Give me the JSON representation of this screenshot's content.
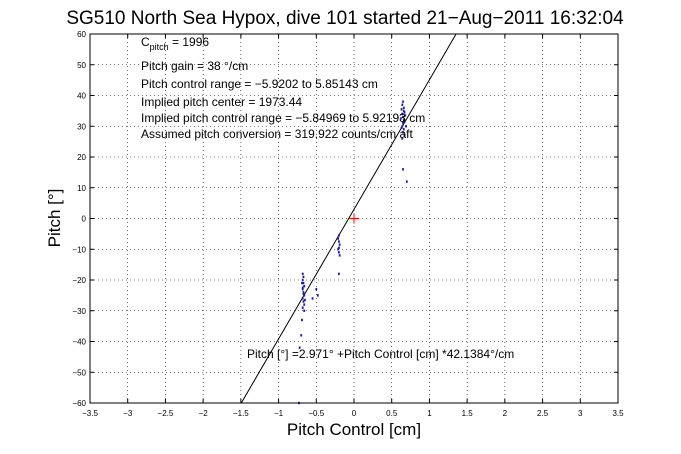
{
  "chart_data": {
    "type": "scatter",
    "title": "SG510 North Sea Hypox, dive 101 started 21−Aug−2011 16:32:04",
    "xlabel": "Pitch Control [cm]",
    "ylabel": "Pitch [°]",
    "xlim": [
      -3.5,
      3.5
    ],
    "ylim": [
      -60,
      60
    ],
    "xticks": [
      -3.5,
      -3,
      -2.5,
      -2,
      -1.5,
      -1,
      -0.5,
      0,
      0.5,
      1,
      1.5,
      2,
      2.5,
      3,
      3.5
    ],
    "yticks": [
      -60,
      -50,
      -40,
      -30,
      -20,
      -10,
      0,
      10,
      20,
      30,
      40,
      50,
      60
    ],
    "x_tick_labels": [
      "−3.5",
      "−3",
      "−2.5",
      "−2",
      "−1.5",
      "−1",
      "−0.5",
      "0",
      "0.5",
      "1",
      "1.5",
      "2",
      "2.5",
      "3",
      "3.5"
    ],
    "y_tick_labels": [
      "−60",
      "−50",
      "−40",
      "−30",
      "−20",
      "−10",
      "0",
      "10",
      "20",
      "30",
      "40",
      "50",
      "60"
    ],
    "grid": true,
    "annotations": {
      "c_pitch_main": "C",
      "c_pitch_sub": "pitch",
      "c_pitch_value": " = 1996",
      "gain": "Pitch gain = 38 °/cm",
      "control_range": "Pitch control range = −5.9202 to 5.85143 cm",
      "implied_center": "Implied pitch center = 1973.44",
      "implied_range": "Implied pitch control range = −5.84969 to 5.92193 cm",
      "assumed_conversion": "Assumed pitch conversion = 319.922 counts/cm aft",
      "fit_equation": "Pitch [°] =2.971° +Pitch Control [cm] *42.1384°/cm"
    },
    "series": [
      {
        "points": [
          [
            -0.68,
            -18
          ],
          [
            -0.67,
            -19
          ],
          [
            -0.68,
            -20
          ],
          [
            -0.67,
            -21
          ],
          [
            -0.66,
            -22
          ],
          [
            -0.68,
            -23
          ],
          [
            -0.67,
            -24
          ],
          [
            -0.66,
            -25
          ],
          [
            -0.68,
            -26
          ],
          [
            -0.67,
            -27
          ],
          [
            -0.66,
            -28
          ],
          [
            -0.68,
            -29
          ],
          [
            -0.67,
            -24.5
          ],
          [
            -0.68,
            -22.5
          ],
          [
            -0.69,
            -21
          ],
          [
            -0.65,
            -26.5
          ],
          [
            -0.66,
            -30
          ],
          [
            -0.69,
            -33
          ],
          [
            -0.7,
            -38
          ],
          [
            -0.72,
            -42
          ],
          [
            -0.73,
            -60
          ],
          [
            -0.5,
            -23
          ],
          [
            -0.48,
            -25
          ],
          [
            -0.55,
            -26
          ],
          [
            -0.2,
            -5.5
          ],
          [
            -0.21,
            -6.5
          ],
          [
            -0.2,
            -7.5
          ],
          [
            -0.19,
            -8.5
          ],
          [
            -0.2,
            -9.5
          ],
          [
            -0.21,
            -10
          ],
          [
            -0.2,
            -11
          ],
          [
            -0.19,
            -12
          ],
          [
            -0.2,
            -18
          ],
          [
            0.64,
            34
          ],
          [
            0.65,
            33
          ],
          [
            0.66,
            32
          ],
          [
            0.65,
            31
          ],
          [
            0.64,
            30
          ],
          [
            0.66,
            29
          ],
          [
            0.65,
            28
          ],
          [
            0.67,
            27
          ],
          [
            0.64,
            26
          ],
          [
            0.66,
            35
          ],
          [
            0.68,
            33.5
          ],
          [
            0.63,
            29.5
          ],
          [
            0.67,
            31.5
          ],
          [
            0.69,
            30
          ],
          [
            0.62,
            32.5
          ],
          [
            0.66,
            36
          ],
          [
            0.64,
            37
          ],
          [
            0.65,
            38
          ],
          [
            0.63,
            35.5
          ],
          [
            0.67,
            34.5
          ],
          [
            0.65,
            16
          ],
          [
            0.7,
            12
          ]
        ]
      }
    ],
    "fit_line": {
      "intercept": 2.971,
      "slope": 42.1384
    },
    "center_marker": [
      0,
      0
    ],
    "colors": {
      "points": "#1a1aa8",
      "fit_line": "#000000",
      "center_marker": "#ff0000"
    }
  }
}
